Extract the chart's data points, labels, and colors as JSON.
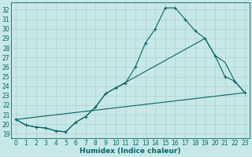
{
  "xlabel": "Humidex (Indice chaleur)",
  "bg_color": "#c8e8e8",
  "line_color": "#006666",
  "xlim": [
    -0.5,
    23.5
  ],
  "ylim": [
    18.5,
    32.8
  ],
  "yticks": [
    19,
    20,
    21,
    22,
    23,
    24,
    25,
    26,
    27,
    28,
    29,
    30,
    31,
    32
  ],
  "xticks": [
    0,
    1,
    2,
    3,
    4,
    5,
    6,
    7,
    8,
    9,
    10,
    11,
    12,
    13,
    14,
    15,
    16,
    17,
    18,
    19,
    20,
    21,
    22,
    23
  ],
  "line1_x": [
    0,
    1,
    2,
    3,
    4,
    5,
    6,
    7,
    8,
    9,
    10,
    11,
    12,
    13,
    14,
    15,
    16,
    17,
    18,
    19,
    20,
    21,
    22,
    23
  ],
  "line1_y": [
    20.5,
    19.9,
    19.7,
    19.6,
    19.3,
    19.2,
    20.2,
    20.8,
    21.8,
    23.2,
    23.8,
    24.3,
    26.0,
    28.5,
    30.0,
    32.2,
    32.2,
    31.0,
    29.8,
    29.0,
    27.2,
    25.0,
    24.5,
    23.3
  ],
  "line2_x": [
    0,
    1,
    2,
    3,
    4,
    5,
    6,
    7,
    8,
    9,
    10,
    19,
    20,
    21,
    22,
    23
  ],
  "line2_y": [
    20.5,
    19.9,
    19.7,
    19.6,
    19.3,
    19.2,
    20.2,
    20.8,
    21.8,
    23.2,
    23.8,
    29.0,
    27.2,
    26.5,
    24.5,
    23.3
  ],
  "line3_x": [
    0,
    23
  ],
  "line3_y": [
    20.5,
    23.3
  ],
  "grid_color": "#b0cece",
  "font_color": "#006666",
  "xlabel_fontsize": 6.5,
  "tick_fontsize": 5.5
}
